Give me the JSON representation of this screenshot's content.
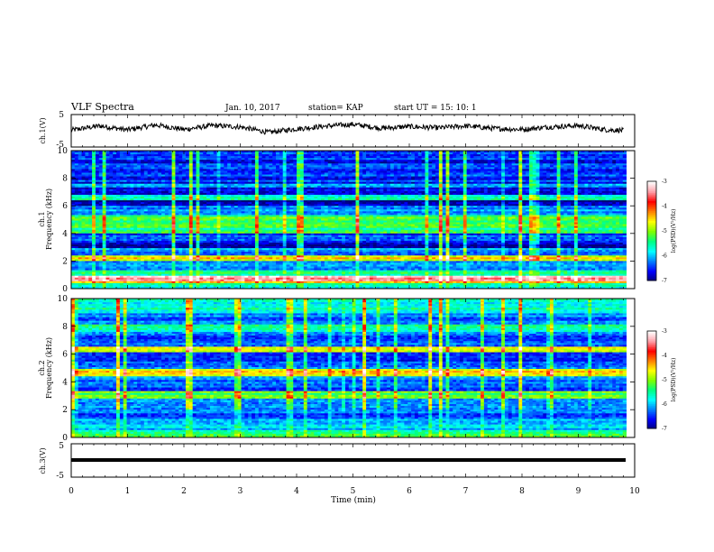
{
  "header": {
    "title": "VLF Spectra",
    "date": "Jan. 10, 2017",
    "station": "station= KAP",
    "start": "start  UT =   15: 10: 1"
  },
  "chart_data": [
    {
      "type": "line",
      "name": "ch1-waveform",
      "ylabel": "ch.1(V)",
      "ylim": [
        -5,
        5
      ],
      "yticks": [
        "5",
        "-5"
      ],
      "xlim": [
        0,
        10
      ],
      "series": [
        {
          "x": [
            0,
            0.5,
            1,
            1.5,
            2,
            2.5,
            3,
            3.5,
            4,
            4.5,
            5,
            5.5,
            6,
            6.5,
            7,
            7.5,
            8,
            8.5,
            9,
            9.5,
            9.8
          ],
          "values": [
            0.2,
            1.5,
            0.3,
            1.8,
            0.4,
            1.6,
            1.2,
            -0.5,
            0.6,
            1.4,
            2.0,
            0.8,
            1.3,
            0.9,
            1.5,
            0.7,
            0.4,
            1.2,
            1.6,
            0.3,
            0.1
          ]
        }
      ]
    },
    {
      "type": "heatmap",
      "name": "ch1-spectrogram",
      "ylabel": "ch.1",
      "ylabel2": "Frequency (kHz)",
      "ylim": [
        0,
        10
      ],
      "yticks": [
        "0",
        "2",
        "4",
        "6",
        "8",
        "10"
      ],
      "xlim": [
        0,
        9.85
      ],
      "bands": [
        {
          "f": [
            0.0,
            0.4
          ],
          "level": -5.6
        },
        {
          "f": [
            0.4,
            0.6
          ],
          "level": -4.2
        },
        {
          "f": [
            0.6,
            1.0
          ],
          "level": -3.2
        },
        {
          "f": [
            1.0,
            1.4
          ],
          "level": -5.4
        },
        {
          "f": [
            1.4,
            2.0
          ],
          "level": -6.1
        },
        {
          "f": [
            2.0,
            2.4
          ],
          "level": -4.6
        },
        {
          "f": [
            2.4,
            3.0
          ],
          "level": -6.2
        },
        {
          "f": [
            3.0,
            3.4
          ],
          "level": -6.9
        },
        {
          "f": [
            3.4,
            4.0
          ],
          "level": -6.4
        },
        {
          "f": [
            4.0,
            4.4
          ],
          "level": -5.4
        },
        {
          "f": [
            4.4,
            5.4
          ],
          "level": -5.2
        },
        {
          "f": [
            5.4,
            6.0
          ],
          "level": -6.1
        },
        {
          "f": [
            6.0,
            6.4
          ],
          "level": -7.0
        },
        {
          "f": [
            6.4,
            6.8
          ],
          "level": -5.6
        },
        {
          "f": [
            6.8,
            7.4
          ],
          "level": -6.6
        },
        {
          "f": [
            7.4,
            7.6
          ],
          "level": -5.9
        },
        {
          "f": [
            7.6,
            10.0
          ],
          "level": -6.5
        }
      ]
    },
    {
      "type": "heatmap",
      "name": "ch2-spectrogram",
      "ylabel": "ch.2",
      "ylabel2": "Frequency (kHz)",
      "ylim": [
        0,
        10
      ],
      "yticks": [
        "0",
        "2",
        "4",
        "6",
        "8",
        "10"
      ],
      "xlim": [
        0,
        9.85
      ],
      "bands": [
        {
          "f": [
            0.0,
            0.6
          ],
          "level": -5.4
        },
        {
          "f": [
            0.6,
            1.4
          ],
          "level": -6.0
        },
        {
          "f": [
            1.4,
            2.0
          ],
          "level": -6.3
        },
        {
          "f": [
            2.0,
            2.8
          ],
          "level": -6.1
        },
        {
          "f": [
            2.8,
            3.4
          ],
          "level": -5.2
        },
        {
          "f": [
            3.4,
            4.0
          ],
          "level": -6.4
        },
        {
          "f": [
            4.0,
            4.4
          ],
          "level": -6.2
        },
        {
          "f": [
            4.4,
            5.0
          ],
          "level": -4.6
        },
        {
          "f": [
            5.0,
            5.6
          ],
          "level": -6.4
        },
        {
          "f": [
            5.6,
            6.2
          ],
          "level": -6.5
        },
        {
          "f": [
            6.2,
            6.6
          ],
          "level": -4.8
        },
        {
          "f": [
            6.6,
            7.6
          ],
          "level": -6.3
        },
        {
          "f": [
            7.6,
            8.2
          ],
          "level": -5.5
        },
        {
          "f": [
            8.2,
            9.0
          ],
          "level": -6.2
        },
        {
          "f": [
            9.0,
            10.0
          ],
          "level": -5.6
        }
      ]
    },
    {
      "type": "line",
      "name": "ch3-waveform",
      "ylabel": "ch.3(V)",
      "ylim": [
        -5,
        5
      ],
      "yticks": [
        "5",
        "-5"
      ],
      "xlim": [
        0,
        10
      ],
      "series": [
        {
          "x": [
            0,
            9.85
          ],
          "values": [
            0,
            0
          ]
        }
      ]
    }
  ],
  "xaxis": {
    "label": "Time (min)",
    "ticks": [
      "0",
      "1",
      "2",
      "3",
      "4",
      "5",
      "6",
      "7",
      "8",
      "9",
      "10"
    ]
  },
  "colorbar": {
    "label": "log(PSD)(V²/Hz)",
    "range": [
      -7,
      -3
    ],
    "ticks": [
      "-3",
      "-4",
      "-5",
      "-6",
      "-7"
    ],
    "colors": [
      "#00007a",
      "#0000ff",
      "#0080ff",
      "#00ffff",
      "#00ff80",
      "#80ff00",
      "#ffff00",
      "#ff8000",
      "#ff0000",
      "#ff9fa8",
      "#ffffff"
    ]
  }
}
